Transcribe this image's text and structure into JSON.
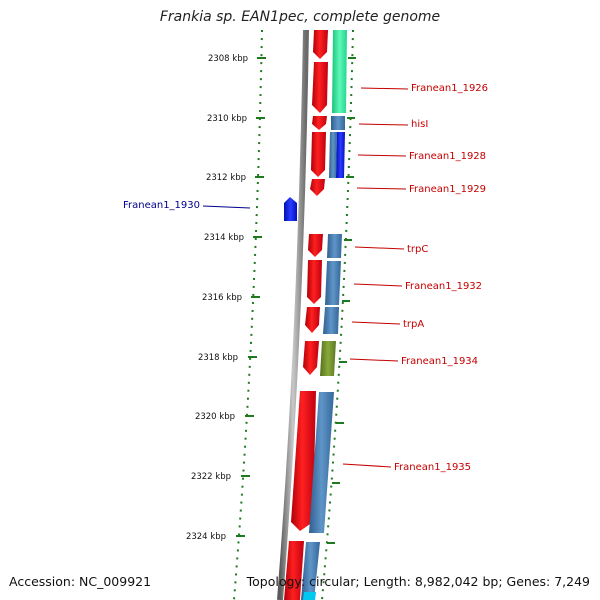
{
  "title": "Frankia sp. EAN1pec, complete genome",
  "footer": {
    "accession": "Accession: NC_009921",
    "summary": "Topology: circular; Length: 8,982,042 bp; Genes: 7,249"
  },
  "colors": {
    "forward_gene": "#e8141a",
    "cds_steel": "#4a7fb0",
    "cds_green": "#2de89a",
    "cds_blue": "#0a1ee6",
    "cds_olive": "#6e8a28",
    "reverse_gene": "#1010e8",
    "label_forward": "#c40000",
    "label_reverse": "#00008b",
    "tick": "#1f7a1f"
  },
  "ruler": {
    "unit": "kbp",
    "ticks": [
      "2308 kbp",
      "2310 kbp",
      "2312 kbp",
      "2314 kbp",
      "2316 kbp",
      "2318 kbp",
      "2320 kbp",
      "2322 kbp",
      "2324 kbp"
    ]
  },
  "genes": [
    {
      "label": "Franean1_1926",
      "strand": "+"
    },
    {
      "label": "hisI",
      "strand": "+"
    },
    {
      "label": "Franean1_1928",
      "strand": "+"
    },
    {
      "label": "Franean1_1929",
      "strand": "+"
    },
    {
      "label": "Franean1_1930",
      "strand": "-"
    },
    {
      "label": "trpC",
      "strand": "+"
    },
    {
      "label": "Franean1_1932",
      "strand": "+"
    },
    {
      "label": "trpA",
      "strand": "+"
    },
    {
      "label": "Franean1_1934",
      "strand": "+"
    },
    {
      "label": "Franean1_1935",
      "strand": "+"
    }
  ]
}
